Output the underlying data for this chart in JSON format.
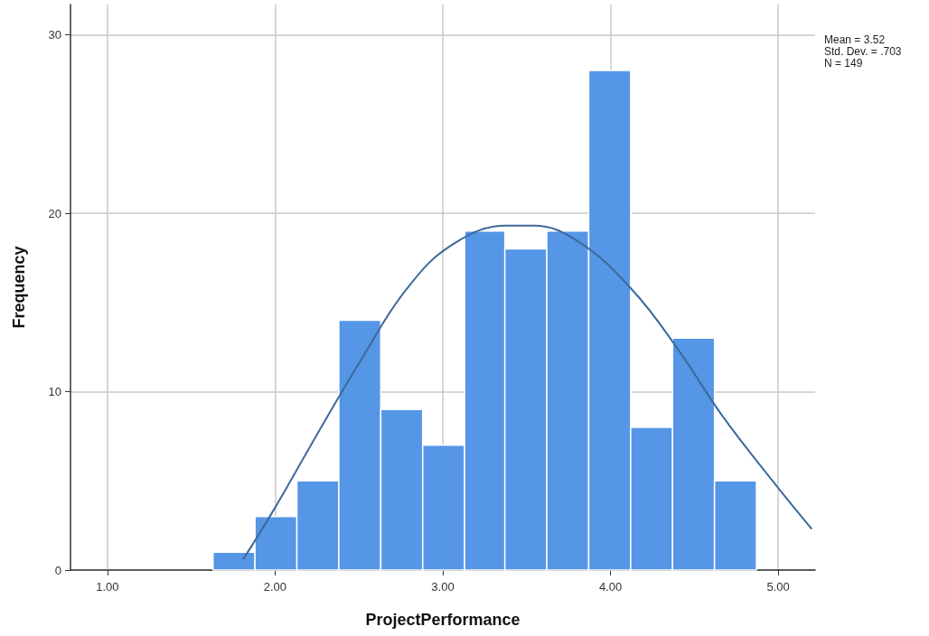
{
  "chart_data": {
    "type": "histogram",
    "xlabel": "ProjectPerformance",
    "ylabel": "Frequency",
    "bins": [
      1.63,
      1.88,
      2.13,
      2.38,
      2.63,
      2.88,
      3.13,
      3.37,
      3.62,
      3.87,
      4.12,
      4.37,
      4.62,
      4.87
    ],
    "values": [
      1,
      3,
      5,
      14,
      9,
      7,
      19,
      18,
      19,
      28,
      8,
      13,
      5
    ],
    "color": "#5596e6",
    "series": [
      {
        "type": "line",
        "color": "#3d6a99",
        "x": [
          1.81,
          2.0,
          2.25,
          2.52,
          2.78,
          3.05,
          3.38,
          3.54,
          3.81,
          4.13,
          4.4,
          4.67,
          5.0,
          5.2
        ],
        "values": [
          0.6,
          3.5,
          7.6,
          11.9,
          15.7,
          18.2,
          19.3,
          19.3,
          18.4,
          15.7,
          12.4,
          8.6,
          4.6,
          2.3
        ]
      }
    ],
    "xlim": [
      0.78,
      5.22
    ],
    "ylim": [
      0,
      31.7
    ],
    "xticks": [
      {
        "value": 1,
        "label": "1.00"
      },
      {
        "value": 2,
        "label": "2.00"
      },
      {
        "value": 3,
        "label": "3.00"
      },
      {
        "value": 4,
        "label": "4.00"
      },
      {
        "value": 5,
        "label": "5.00"
      }
    ],
    "yticks": [
      0,
      10,
      20,
      30
    ],
    "grid": true,
    "marker": "none",
    "annotations": [
      "Mean = 3.52",
      "Std. Dev. = .703",
      "N = 149"
    ]
  }
}
